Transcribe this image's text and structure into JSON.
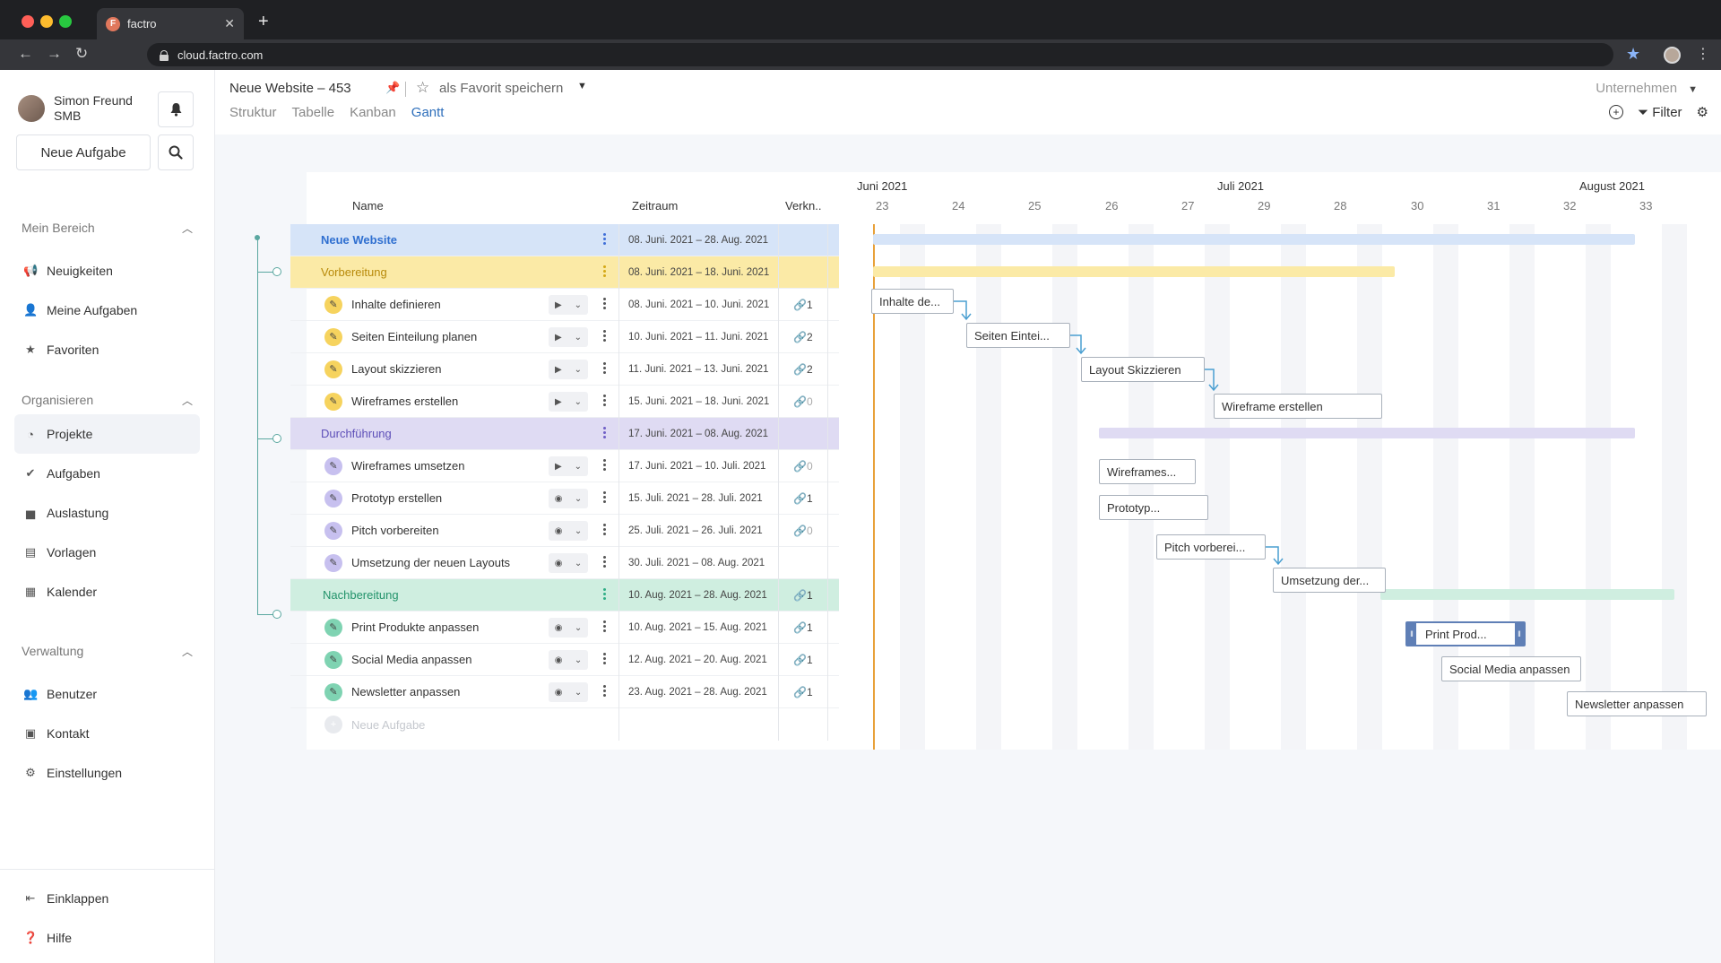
{
  "browser": {
    "tab_title": "factro",
    "favicon_letter": "F",
    "url": "cloud.factro.com"
  },
  "sidebar": {
    "user_name": "Simon Freund",
    "user_org": "SMB",
    "new_task_label": "Neue Aufgabe",
    "sections": [
      {
        "title": "Mein Bereich",
        "items": [
          {
            "label": "Neuigkeiten",
            "icon": "megaphone-icon"
          },
          {
            "label": "Meine Aufgaben",
            "icon": "user-tasks-icon"
          },
          {
            "label": "Favoriten",
            "icon": "star-icon"
          }
        ]
      },
      {
        "title": "Organisieren",
        "items": [
          {
            "label": "Projekte",
            "icon": "pie-chart-icon",
            "active": true
          },
          {
            "label": "Aufgaben",
            "icon": "check-circle-icon"
          },
          {
            "label": "Auslastung",
            "icon": "bar-chart-icon"
          },
          {
            "label": "Vorlagen",
            "icon": "template-icon"
          },
          {
            "label": "Kalender",
            "icon": "calendar-icon"
          }
        ]
      },
      {
        "title": "Verwaltung",
        "items": [
          {
            "label": "Benutzer",
            "icon": "users-icon"
          },
          {
            "label": "Kontakt",
            "icon": "contact-card-icon"
          },
          {
            "label": "Einstellungen",
            "icon": "gear-icon"
          }
        ]
      }
    ],
    "bottom": [
      {
        "label": "Einklappen",
        "icon": "collapse-icon"
      },
      {
        "label": "Hilfe",
        "icon": "help-icon"
      }
    ]
  },
  "header": {
    "project_title": "Neue Website – 453",
    "favorite_label": "als Favorit speichern",
    "tabs": [
      "Struktur",
      "Tabelle",
      "Kanban",
      "Gantt"
    ],
    "active_tab": "Gantt",
    "company_select": "Unternehmen",
    "filter_label": "Filter"
  },
  "gantt": {
    "columns": {
      "name": "Name",
      "period": "Zeitraum",
      "links": "Verkn.."
    },
    "months": [
      "Juni 2021",
      "Juli 2021",
      "August 2021"
    ],
    "weeks": [
      "23",
      "24",
      "25",
      "26",
      "27",
      "29",
      "28",
      "30",
      "31",
      "32",
      "33"
    ],
    "rows": [
      {
        "type": "project",
        "label": "Neue Website",
        "period": "08. Juni. 2021 – 28. Aug. 2021",
        "links": ""
      },
      {
        "type": "phase",
        "color": "yellow",
        "label": "Vorbereitung",
        "period": "08. Juni. 2021 – 18. Juni. 2021",
        "links": ""
      },
      {
        "type": "task",
        "color": "yellow",
        "label": "Inhalte definieren",
        "period": "08. Juni. 2021 – 10. Juni. 2021",
        "links": "1",
        "state": "play"
      },
      {
        "type": "task",
        "color": "yellow",
        "label": "Seiten Einteilung planen",
        "period": "10. Juni. 2021 – 11. Juni. 2021",
        "links": "2",
        "state": "play"
      },
      {
        "type": "task",
        "color": "yellow",
        "label": "Layout skizzieren",
        "period": "11. Juni. 2021 – 13. Juni. 2021",
        "links": "2",
        "state": "play"
      },
      {
        "type": "task",
        "color": "yellow",
        "label": "Wireframes erstellen",
        "period": "15. Juni. 2021 – 18. Juni. 2021",
        "links": "0",
        "state": "play"
      },
      {
        "type": "phase",
        "color": "purple",
        "label": "Durchführung",
        "period": "17. Juni. 2021 – 08. Aug. 2021",
        "links": ""
      },
      {
        "type": "task",
        "color": "purple",
        "label": "Wireframes umsetzen",
        "period": "17. Juni. 2021 – 10. Juli. 2021",
        "links": "0",
        "state": "play"
      },
      {
        "type": "task",
        "color": "purple",
        "label": "Prototyp erstellen",
        "period": "15. Juli. 2021 – 28. Juli. 2021",
        "links": "1",
        "state": "stop"
      },
      {
        "type": "task",
        "color": "purple",
        "label": "Pitch vorbereiten",
        "period": "25. Juli. 2021 – 26. Juli. 2021",
        "links": "0",
        "state": "stop"
      },
      {
        "type": "task",
        "color": "purple",
        "label": "Umsetzung der neuen Layouts",
        "period": "30. Juli. 2021 – 08. Aug. 2021",
        "links": "",
        "state": "stop"
      },
      {
        "type": "phase",
        "color": "green",
        "label": "Nachbereitung",
        "period": "10. Aug. 2021 – 28. Aug. 2021",
        "links": "1"
      },
      {
        "type": "task",
        "color": "green",
        "label": "Print Produkte anpassen",
        "period": "10. Aug. 2021 – 15. Aug. 2021",
        "links": "1",
        "state": "stop"
      },
      {
        "type": "task",
        "color": "green",
        "label": "Social Media anpassen",
        "period": "12. Aug. 2021 – 20. Aug. 2021",
        "links": "1",
        "state": "stop"
      },
      {
        "type": "task",
        "color": "green",
        "label": "Newsletter anpassen",
        "period": "23. Aug. 2021 – 28. Aug. 2021",
        "links": "1",
        "state": "stop"
      }
    ],
    "new_task_placeholder": "Neue Aufgabe",
    "chart_boxes": [
      "Inhalte de...",
      "Seiten Eintei...",
      "Layout Skizzieren",
      "Wireframe erstellen",
      "Wireframes...",
      "Prototyp...",
      "Pitch vorberei...",
      "Umsetzung der...",
      "Print Prod...",
      "Social Media anpassen",
      "Newsletter anpassen"
    ]
  },
  "colors": {
    "project_bg": "#d6e4f8",
    "project_text": "#2f6fd0",
    "yellow_bg": "#fbeaa6",
    "yellow_text": "#b88a0a",
    "purple_bg": "#dfdbf3",
    "purple_text": "#5d4fb8",
    "green_bg": "#cfeee0",
    "green_text": "#23936b"
  }
}
